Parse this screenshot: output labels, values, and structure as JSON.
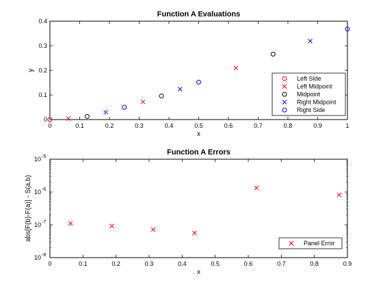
{
  "chart_data": [
    {
      "type": "scatter",
      "title": "Function A Evaluations",
      "xlabel": "x",
      "ylabel": "y",
      "xlim": [
        0,
        1
      ],
      "ylim": [
        0,
        0.4
      ],
      "xticks": [
        0,
        0.1,
        0.2,
        0.3,
        0.4,
        0.5,
        0.6,
        0.7,
        0.8,
        0.9,
        1
      ],
      "xtick_labels": [
        "0",
        "0.1",
        "0.2",
        "0.3",
        "0.4",
        "0.5",
        "0.6",
        "0.7",
        "0.8",
        "0.9",
        "1"
      ],
      "yticks": [
        0,
        0.1,
        0.2,
        0.3,
        0.4
      ],
      "ytick_labels": [
        "0",
        "0.1",
        "0.2",
        "0.3",
        "0.4"
      ],
      "grid": false,
      "legend_position": "lower-right",
      "series": [
        {
          "name": "Left Side",
          "marker": "circle",
          "color": "#ff0000",
          "x": [
            0
          ],
          "y": [
            0
          ]
        },
        {
          "name": "Left Midpoint",
          "marker": "x",
          "color": "#ff0000",
          "x": [
            0.0625,
            0.3125,
            0.625
          ],
          "y": [
            0.004,
            0.072,
            0.21
          ]
        },
        {
          "name": "Midpoint",
          "marker": "circle",
          "color": "#000000",
          "x": [
            0.125,
            0.375,
            0.75
          ],
          "y": [
            0.013,
            0.096,
            0.266
          ]
        },
        {
          "name": "Right Midpoint",
          "marker": "x",
          "color": "#0000ff",
          "x": [
            0.1875,
            0.4375,
            0.875
          ],
          "y": [
            0.03,
            0.124,
            0.319
          ]
        },
        {
          "name": "Right Side",
          "marker": "circle",
          "color": "#0000ff",
          "x": [
            0.25,
            0.5,
            1
          ],
          "y": [
            0.05,
            0.152,
            0.368
          ]
        }
      ]
    },
    {
      "type": "scatter",
      "title": "Function A Errors",
      "xlabel": "x",
      "ylabel": "abs[F(b)-F(a)] - S(a,b)",
      "xlim": [
        0,
        0.9
      ],
      "ylim": [
        1e-08,
        1e-05
      ],
      "yscale": "log",
      "xticks": [
        0,
        0.1,
        0.2,
        0.3,
        0.4,
        0.5,
        0.6,
        0.7,
        0.8,
        0.9
      ],
      "xtick_labels": [
        "0",
        "0.1",
        "0.2",
        "0.3",
        "0.4",
        "0.5",
        "0.6",
        "0.7",
        "0.8",
        "0.9"
      ],
      "yticks": [
        1e-08,
        1e-07,
        1e-06,
        1e-05
      ],
      "ytick_bases": [
        "10",
        "10",
        "10",
        "10"
      ],
      "ytick_exps": [
        "-8",
        "-7",
        "-6",
        "-5"
      ],
      "grid": false,
      "legend_position": "lower-right",
      "series": [
        {
          "name": "Panel Error",
          "marker": "x",
          "color": "#ff0000",
          "x": [
            0.0625,
            0.1875,
            0.3125,
            0.4375,
            0.625,
            0.875
          ],
          "y": [
            1.1e-07,
            9.2e-08,
            7.2e-08,
            5.6e-08,
            1.35e-06,
            8.2e-07
          ]
        }
      ]
    }
  ]
}
